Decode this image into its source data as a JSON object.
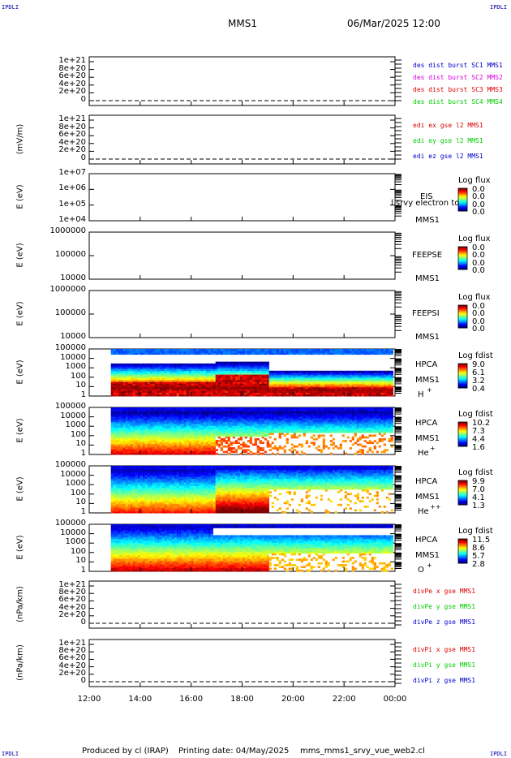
{
  "header": {
    "corner_tl": "IPDLI",
    "corner_tr": "IPDLI",
    "corner_bl": "IPDLI",
    "corner_br": "IPDLI",
    "spacecraft": "MMS1",
    "datetime": "06/Mar/2025 12:00"
  },
  "footer": {
    "produced_by": "Produced by cl (IRAP)",
    "printing_date": "Printing date: 04/May/2025",
    "script": "mms_mms1_srvy_vue_web2.cl"
  },
  "colors": {
    "mms1": "#0000cc",
    "mms2": "#dd00dd",
    "mms3": "#dd0000",
    "mms4": "#00cc00",
    "x": "#dd0000",
    "y": "#00cc00",
    "z": "#0000cc"
  },
  "chart_data": {
    "type": "multi-panel time series / spectrogram",
    "x_tick_labels": [
      "12:00",
      "14:00",
      "16:00",
      "18:00",
      "20:00",
      "22:00",
      "00:00"
    ],
    "x_range_hours": [
      12,
      24
    ],
    "panels": [
      {
        "id": "des-dist",
        "kind": "line",
        "ylabel": "",
        "yticks": [
          "1e+21",
          "8e+20",
          "6e+20",
          "4e+20",
          "2e+20",
          "0"
        ],
        "legend": [
          {
            "text": "des dist burst SC1 MMS1",
            "color_key": "mms1"
          },
          {
            "text": "des dist burst SC2 MMS2",
            "color_key": "mms2"
          },
          {
            "text": "des dist burst SC3 MMS3",
            "color_key": "mms3"
          },
          {
            "text": "des dist burst SC4 MMS4",
            "color_key": "mms4"
          }
        ],
        "series_values": "no data (zero line)"
      },
      {
        "id": "edi-e",
        "kind": "line",
        "ylabel": "(mV/m)",
        "yticks": [
          "1e+21",
          "8e+20",
          "6e+20",
          "4e+20",
          "2e+20",
          "0"
        ],
        "legend": [
          {
            "text": "edi ex gse l2 MMS1",
            "color_key": "x"
          },
          {
            "text": "edi ey gse l2 MMS1",
            "color_key": "y"
          },
          {
            "text": "edi ez gse l2 MMS1",
            "color_key": "z"
          }
        ],
        "series_values": "no data (zero line)"
      },
      {
        "id": "eis",
        "kind": "spectrogram",
        "ylabel": "E (eV)",
        "yticks": [
          "1e+07",
          "1e+06",
          "1e+05",
          "1e+04"
        ],
        "instrument": "EIS",
        "spacecraft": "MMS1",
        "overlay": "l srvy electron to",
        "colorbar_title": "Log flux",
        "colorbar_values": [
          "0.0",
          "0.0",
          "0.0",
          "0.0"
        ],
        "data": "empty"
      },
      {
        "id": "feepse",
        "kind": "spectrogram",
        "ylabel": "E (eV)",
        "yticks": [
          "1000000",
          "100000",
          "10000"
        ],
        "instrument": "FEEPSE",
        "spacecraft": "MMS1",
        "colorbar_title": "Log flux",
        "colorbar_values": [
          "0.0",
          "0.0",
          "0.0",
          "0.0"
        ],
        "data": "empty"
      },
      {
        "id": "feepsi",
        "kind": "spectrogram",
        "ylabel": "E (eV)",
        "yticks": [
          "1000000",
          "100000",
          "10000"
        ],
        "instrument": "FEEPSI",
        "spacecraft": "MMS1",
        "colorbar_title": "Log flux",
        "colorbar_values": [
          "0.0",
          "0.0",
          "0.0",
          "0.0"
        ],
        "data": "empty"
      },
      {
        "id": "hpca-h",
        "kind": "spectrogram",
        "ylabel": "E (eV)",
        "yticks": [
          "100000",
          "10000",
          "1000",
          "100",
          "10",
          "1"
        ],
        "instrument": "HPCA",
        "spacecraft": "MMS1",
        "species": "H",
        "charge": "+",
        "colorbar_title": "Log fdist",
        "colorbar_values": [
          "9.0",
          "6.1",
          "3.2",
          "0.4"
        ],
        "data_start_hour": 12.85,
        "description_bands": [
          {
            "from": 12.85,
            "to": 19.0,
            "hot_core_log_e": [
              0.6,
              2.2
            ]
          },
          {
            "from": 19.0,
            "to": 24.0,
            "hot_core_log_e": [
              0.5,
              1.2
            ]
          }
        ]
      },
      {
        "id": "hpca-he",
        "kind": "spectrogram",
        "ylabel": "E (eV)",
        "yticks": [
          "100000",
          "10000",
          "1000",
          "100",
          "10",
          "1"
        ],
        "instrument": "HPCA",
        "spacecraft": "MMS1",
        "species": "He",
        "charge": "+",
        "colorbar_title": "Log fdist",
        "colorbar_values": [
          "10.2",
          "7.3",
          "4.4",
          "1.6"
        ],
        "data_start_hour": 12.85
      },
      {
        "id": "hpca-he2",
        "kind": "spectrogram",
        "ylabel": "E (eV)",
        "yticks": [
          "100000",
          "10000",
          "1000",
          "100",
          "10",
          "1"
        ],
        "instrument": "HPCA",
        "spacecraft": "MMS1",
        "species": "He",
        "charge": "++",
        "colorbar_title": "Log fdist",
        "colorbar_values": [
          "9.9",
          "7.0",
          "4.1",
          "1.3"
        ],
        "data_start_hour": 12.85
      },
      {
        "id": "hpca-o",
        "kind": "spectrogram",
        "ylabel": "E (eV)",
        "yticks": [
          "100000",
          "10000",
          "1000",
          "100",
          "10",
          "1"
        ],
        "instrument": "HPCA",
        "spacecraft": "MMS1",
        "species": "O",
        "charge": "+",
        "colorbar_title": "Log fdist",
        "colorbar_values": [
          "11.5",
          "8.6",
          "5.7",
          "2.8"
        ],
        "data_start_hour": 12.85
      },
      {
        "id": "divpe",
        "kind": "line",
        "ylabel": "(nPa/km)",
        "yticks": [
          "1e+21",
          "8e+20",
          "6e+20",
          "4e+20",
          "2e+20",
          "0"
        ],
        "legend": [
          {
            "text": "divPe x gse MMS1",
            "color_key": "x"
          },
          {
            "text": "divPe y gse MMS1",
            "color_key": "y"
          },
          {
            "text": "divPe z gse MMS1",
            "color_key": "z"
          }
        ],
        "series_values": "no data (zero line)"
      },
      {
        "id": "divpi",
        "kind": "line",
        "ylabel": "(nPa/km)",
        "yticks": [
          "1e+21",
          "8e+20",
          "6e+20",
          "4e+20",
          "2e+20",
          "0"
        ],
        "legend": [
          {
            "text": "divPi x gse MMS1",
            "color_key": "x"
          },
          {
            "text": "divPi y gse MMS1",
            "color_key": "y"
          },
          {
            "text": "divPi z gse MMS1",
            "color_key": "z"
          }
        ],
        "series_values": "no data (zero line)"
      }
    ]
  }
}
